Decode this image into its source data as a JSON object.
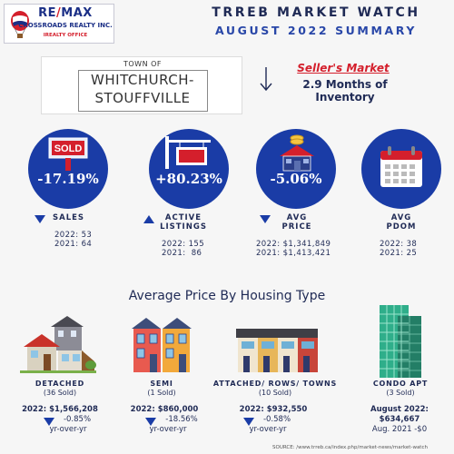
{
  "header": {
    "logo_brand_left": "RE",
    "logo_brand_slash": "/",
    "logo_brand_right": "MAX",
    "logo_sub": "CROSSROADS REALTY INC.",
    "logo_office": "IREALTY OFFICE",
    "title_line1": "TRREB MARKET WATCH",
    "title_line2": "AUGUST 2022 SUMMARY"
  },
  "town": {
    "prefix": "TOWN OF",
    "line1": "WHITCHURCH-",
    "line2": "STOUFFVILLE"
  },
  "market": {
    "label": "Seller's Market",
    "inventory": "2.9 Months of Inventory"
  },
  "stats": [
    {
      "icon": "sold-sign-icon",
      "pct": "-17.19%",
      "direction": "down",
      "label1": "SALES",
      "label2": "",
      "line2022": "2022: 53",
      "line2021": "2021: 64"
    },
    {
      "icon": "for-sale-sign-icon",
      "pct": "+80.23%",
      "direction": "up",
      "label1": "ACTIVE",
      "label2": "LISTINGS",
      "line2022": "2022: 155",
      "line2021": "2021:  86"
    },
    {
      "icon": "house-coins-icon",
      "pct": "-5.06%",
      "direction": "down",
      "label1": "AVG",
      "label2": "PRICE",
      "line2022": "2022: $1,341,849",
      "line2021": "2021: $1,413,421"
    },
    {
      "icon": "calendar-icon",
      "pct": "",
      "direction": "none",
      "label1": "AVG",
      "label2": "PDOM",
      "line2022": "2022: 38",
      "line2021": "2021: 25"
    }
  ],
  "section_title": "Average Price By Housing Type",
  "housing_types": [
    {
      "icon": "detached-house-icon",
      "label": "DETACHED",
      "sold": "(36 Sold)",
      "price": "2022: $1,566,208",
      "change": "-0.85%",
      "yoy": "yr-over-yr"
    },
    {
      "icon": "semi-house-icon",
      "label": "SEMI",
      "sold": "(1 Sold)",
      "price": "2022: $860,000",
      "change": "-18.56%",
      "yoy": "yr-over-yr"
    },
    {
      "icon": "townhouse-icon",
      "label": "ATTACHED/ ROWS/ TOWNS",
      "sold": "(10 Sold)",
      "price": "2022: $932,550",
      "change": "-0.58%",
      "yoy": "yr-over-yr"
    },
    {
      "icon": "condo-tower-icon",
      "label": "CONDO APT",
      "sold": "(3 Sold)",
      "price_line1": "August 2022:",
      "price_line2": "$634,667",
      "compare": "Aug. 2021 -$0"
    }
  ],
  "source": "SOURCE:  /www.trreb.ca/index.php/market-news/market-watch",
  "colors": {
    "navy": "#1f2a55",
    "circle_blue": "#1a3ca6",
    "accent_red": "#d41f2c",
    "title_blue": "#2947a8"
  }
}
